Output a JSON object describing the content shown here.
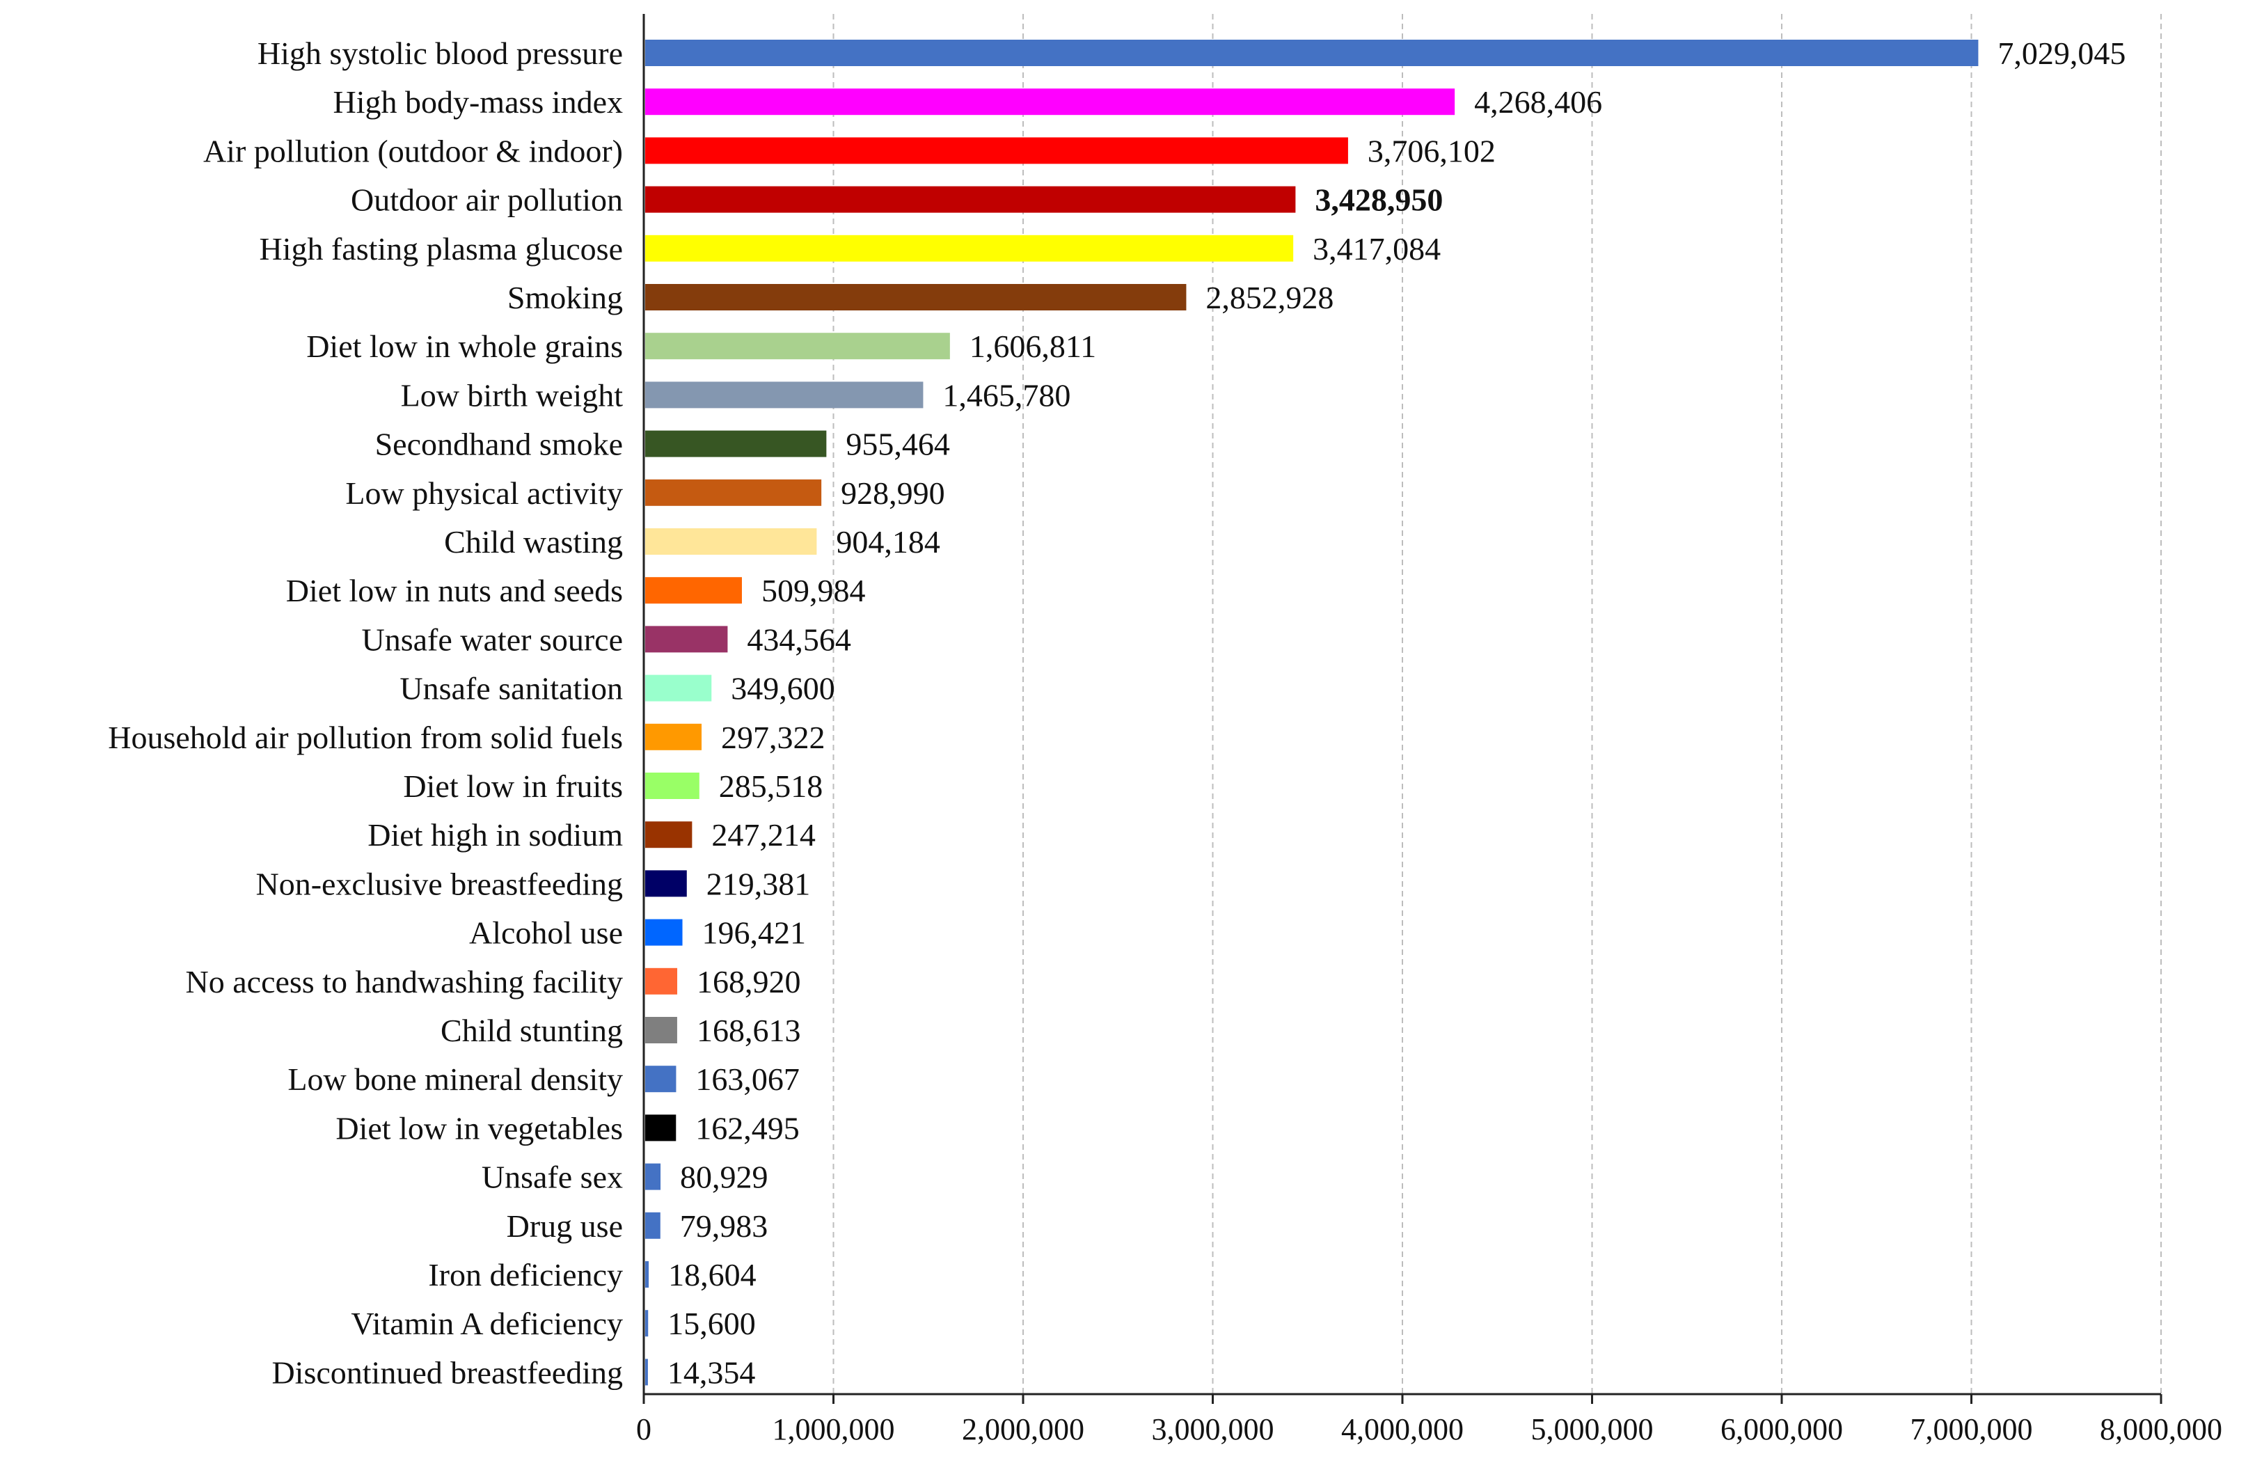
{
  "chart_data": {
    "type": "bar",
    "orientation": "horizontal",
    "title": "",
    "xlabel": "",
    "ylabel": "",
    "xlim": [
      0,
      8000000
    ],
    "x_ticks": [
      0,
      1000000,
      2000000,
      3000000,
      4000000,
      5000000,
      6000000,
      7000000,
      8000000
    ],
    "x_tick_labels": [
      "0",
      "1,000,000",
      "2,000,000",
      "3,000,000",
      "4,000,000",
      "5,000,000",
      "6,000,000",
      "7,000,000",
      "8,000,000"
    ],
    "grid": true,
    "legend": "none",
    "bars": [
      {
        "label": "High systolic blood pressure",
        "value": 7029045,
        "value_label": "7,029,045",
        "color": "#4472C4"
      },
      {
        "label": "High body-mass index",
        "value": 4268406,
        "value_label": "4,268,406",
        "color": "#FF00FF"
      },
      {
        "label": "Air pollution (outdoor & indoor)",
        "value": 3706102,
        "value_label": "3,706,102",
        "color": "#FF0000",
        "label_color": "#FF0000"
      },
      {
        "label": "Outdoor air pollution",
        "value": 3428950,
        "value_label": "3,428,950",
        "color": "#C00000",
        "label_color": "#C00000",
        "label_bold": true
      },
      {
        "label": "High fasting plasma glucose",
        "value": 3417084,
        "value_label": "3,417,084",
        "color": "#FFFF00"
      },
      {
        "label": "Smoking",
        "value": 2852928,
        "value_label": "2,852,928",
        "color": "#843C0C"
      },
      {
        "label": "Diet low in whole grains",
        "value": 1606811,
        "value_label": "1,606,811",
        "color": "#A9D18E"
      },
      {
        "label": "Low birth weight",
        "value": 1465780,
        "value_label": "1,465,780",
        "color": "#8497B0"
      },
      {
        "label": "Secondhand smoke",
        "value": 955464,
        "value_label": "955,464",
        "color": "#375623"
      },
      {
        "label": "Low physical activity",
        "value": 928990,
        "value_label": "928,990",
        "color": "#C55A11"
      },
      {
        "label": "Child wasting",
        "value": 904184,
        "value_label": "904,184",
        "color": "#FFE699"
      },
      {
        "label": "Diet low in nuts and seeds",
        "value": 509984,
        "value_label": "509,984",
        "color": "#FF6600"
      },
      {
        "label": "Unsafe water source",
        "value": 434564,
        "value_label": "434,564",
        "color": "#993366"
      },
      {
        "label": "Unsafe sanitation",
        "value": 349600,
        "value_label": "349,600",
        "color": "#99FFCC"
      },
      {
        "label": "Household air pollution from solid fuels",
        "value": 297322,
        "value_label": "297,322",
        "color": "#FF9900"
      },
      {
        "label": "Diet low in fruits",
        "value": 285518,
        "value_label": "285,518",
        "color": "#99FF66"
      },
      {
        "label": "Diet high in sodium",
        "value": 247214,
        "value_label": "247,214",
        "color": "#993300"
      },
      {
        "label": "Non-exclusive breastfeeding",
        "value": 219381,
        "value_label": "219,381",
        "color": "#000066"
      },
      {
        "label": "Alcohol use",
        "value": 196421,
        "value_label": "196,421",
        "color": "#0066FF"
      },
      {
        "label": "No access to handwashing facility",
        "value": 168920,
        "value_label": "168,920",
        "color": "#FF6633"
      },
      {
        "label": "Child stunting",
        "value": 168613,
        "value_label": "168,613",
        "color": "#7F7F7F"
      },
      {
        "label": "Low bone mineral density",
        "value": 163067,
        "value_label": "163,067",
        "color": "#4472C4"
      },
      {
        "label": "Diet low in vegetables",
        "value": 162495,
        "value_label": "162,495",
        "color": "#000000"
      },
      {
        "label": "Unsafe sex",
        "value": 80929,
        "value_label": "80,929",
        "color": "#4472C4"
      },
      {
        "label": "Drug use",
        "value": 79983,
        "value_label": "79,983",
        "color": "#4472C4"
      },
      {
        "label": "Iron deficiency",
        "value": 18604,
        "value_label": "18,604",
        "color": "#4472C4"
      },
      {
        "label": "Vitamin A deficiency",
        "value": 15600,
        "value_label": "15,600",
        "color": "#4472C4"
      },
      {
        "label": "Discontinued breastfeeding",
        "value": 14354,
        "value_label": "14,354",
        "color": "#4472C4"
      }
    ]
  }
}
